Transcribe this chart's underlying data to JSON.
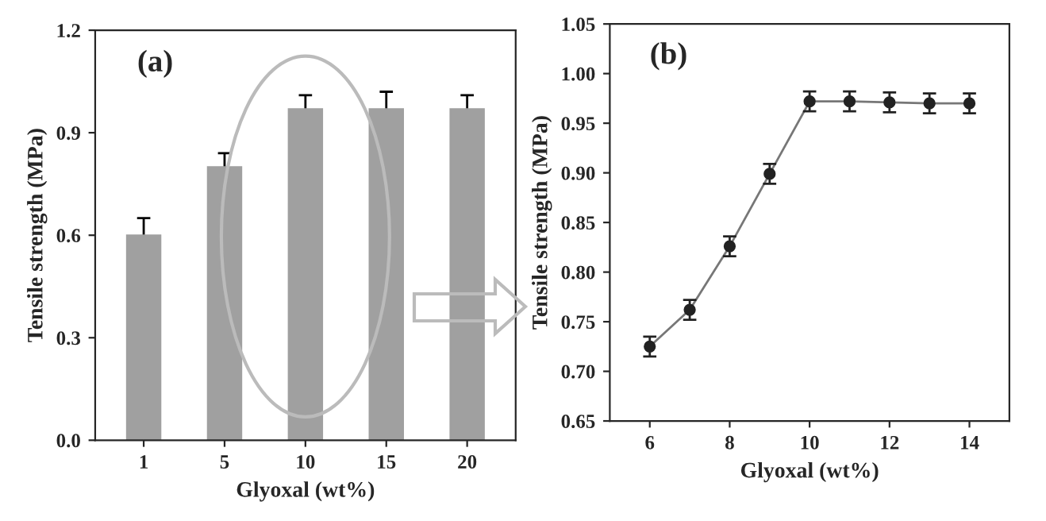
{
  "chart_data": [
    {
      "type": "bar",
      "categories": [
        "1",
        "5",
        "10",
        "15",
        "20"
      ],
      "values": [
        0.6,
        0.8,
        0.97,
        0.97,
        0.97
      ],
      "errors": [
        0.05,
        0.04,
        0.04,
        0.05,
        0.04
      ],
      "color": "#a0a0a0",
      "xlabel": "Glyoxal (wt%)",
      "ylabel": "Tensile strength (MPa)",
      "ylim": [
        0,
        1.2
      ],
      "yticks": [
        {
          "value": 0,
          "label": "0.0"
        },
        0.3,
        0.6,
        0.9,
        {
          "value": 1.2,
          "label": "1.2"
        }
      ],
      "annotations": [
        "(a)"
      ],
      "grid": false,
      "legend": false
    },
    {
      "type": "line",
      "x": [
        6,
        7,
        8,
        9,
        10,
        11,
        12,
        13,
        14
      ],
      "values": [
        0.725,
        0.762,
        0.826,
        0.899,
        0.972,
        0.972,
        0.971,
        0.97,
        0.97
      ],
      "errors": [
        0.01,
        0.01,
        0.01,
        0.01,
        0.01,
        0.01,
        0.01,
        0.01,
        0.01
      ],
      "color": "#222222",
      "marker": "circle",
      "line_style": "solid",
      "xlabel": "Glyoxal (wt%)",
      "ylabel": "Tensile strength (MPa)",
      "xlim": [
        5,
        15
      ],
      "xticks": [
        6,
        8,
        10,
        12,
        14
      ],
      "ylim": [
        0.65,
        1.05
      ],
      "yticks": [
        {
          "value": 0.65,
          "label": "0.65"
        },
        {
          "value": 0.7,
          "label": "0.70"
        },
        {
          "value": 0.75,
          "label": "0.75"
        },
        {
          "value": 0.8,
          "label": "0.80"
        },
        {
          "value": 0.85,
          "label": "0.85"
        },
        {
          "value": 0.9,
          "label": "0.90"
        },
        {
          "value": 0.95,
          "label": "0.95"
        },
        {
          "value": 1.0,
          "label": "1.00"
        },
        {
          "value": 1.05,
          "label": "1.05"
        }
      ],
      "annotations": [
        "(b)"
      ],
      "grid": false,
      "legend": false
    }
  ]
}
